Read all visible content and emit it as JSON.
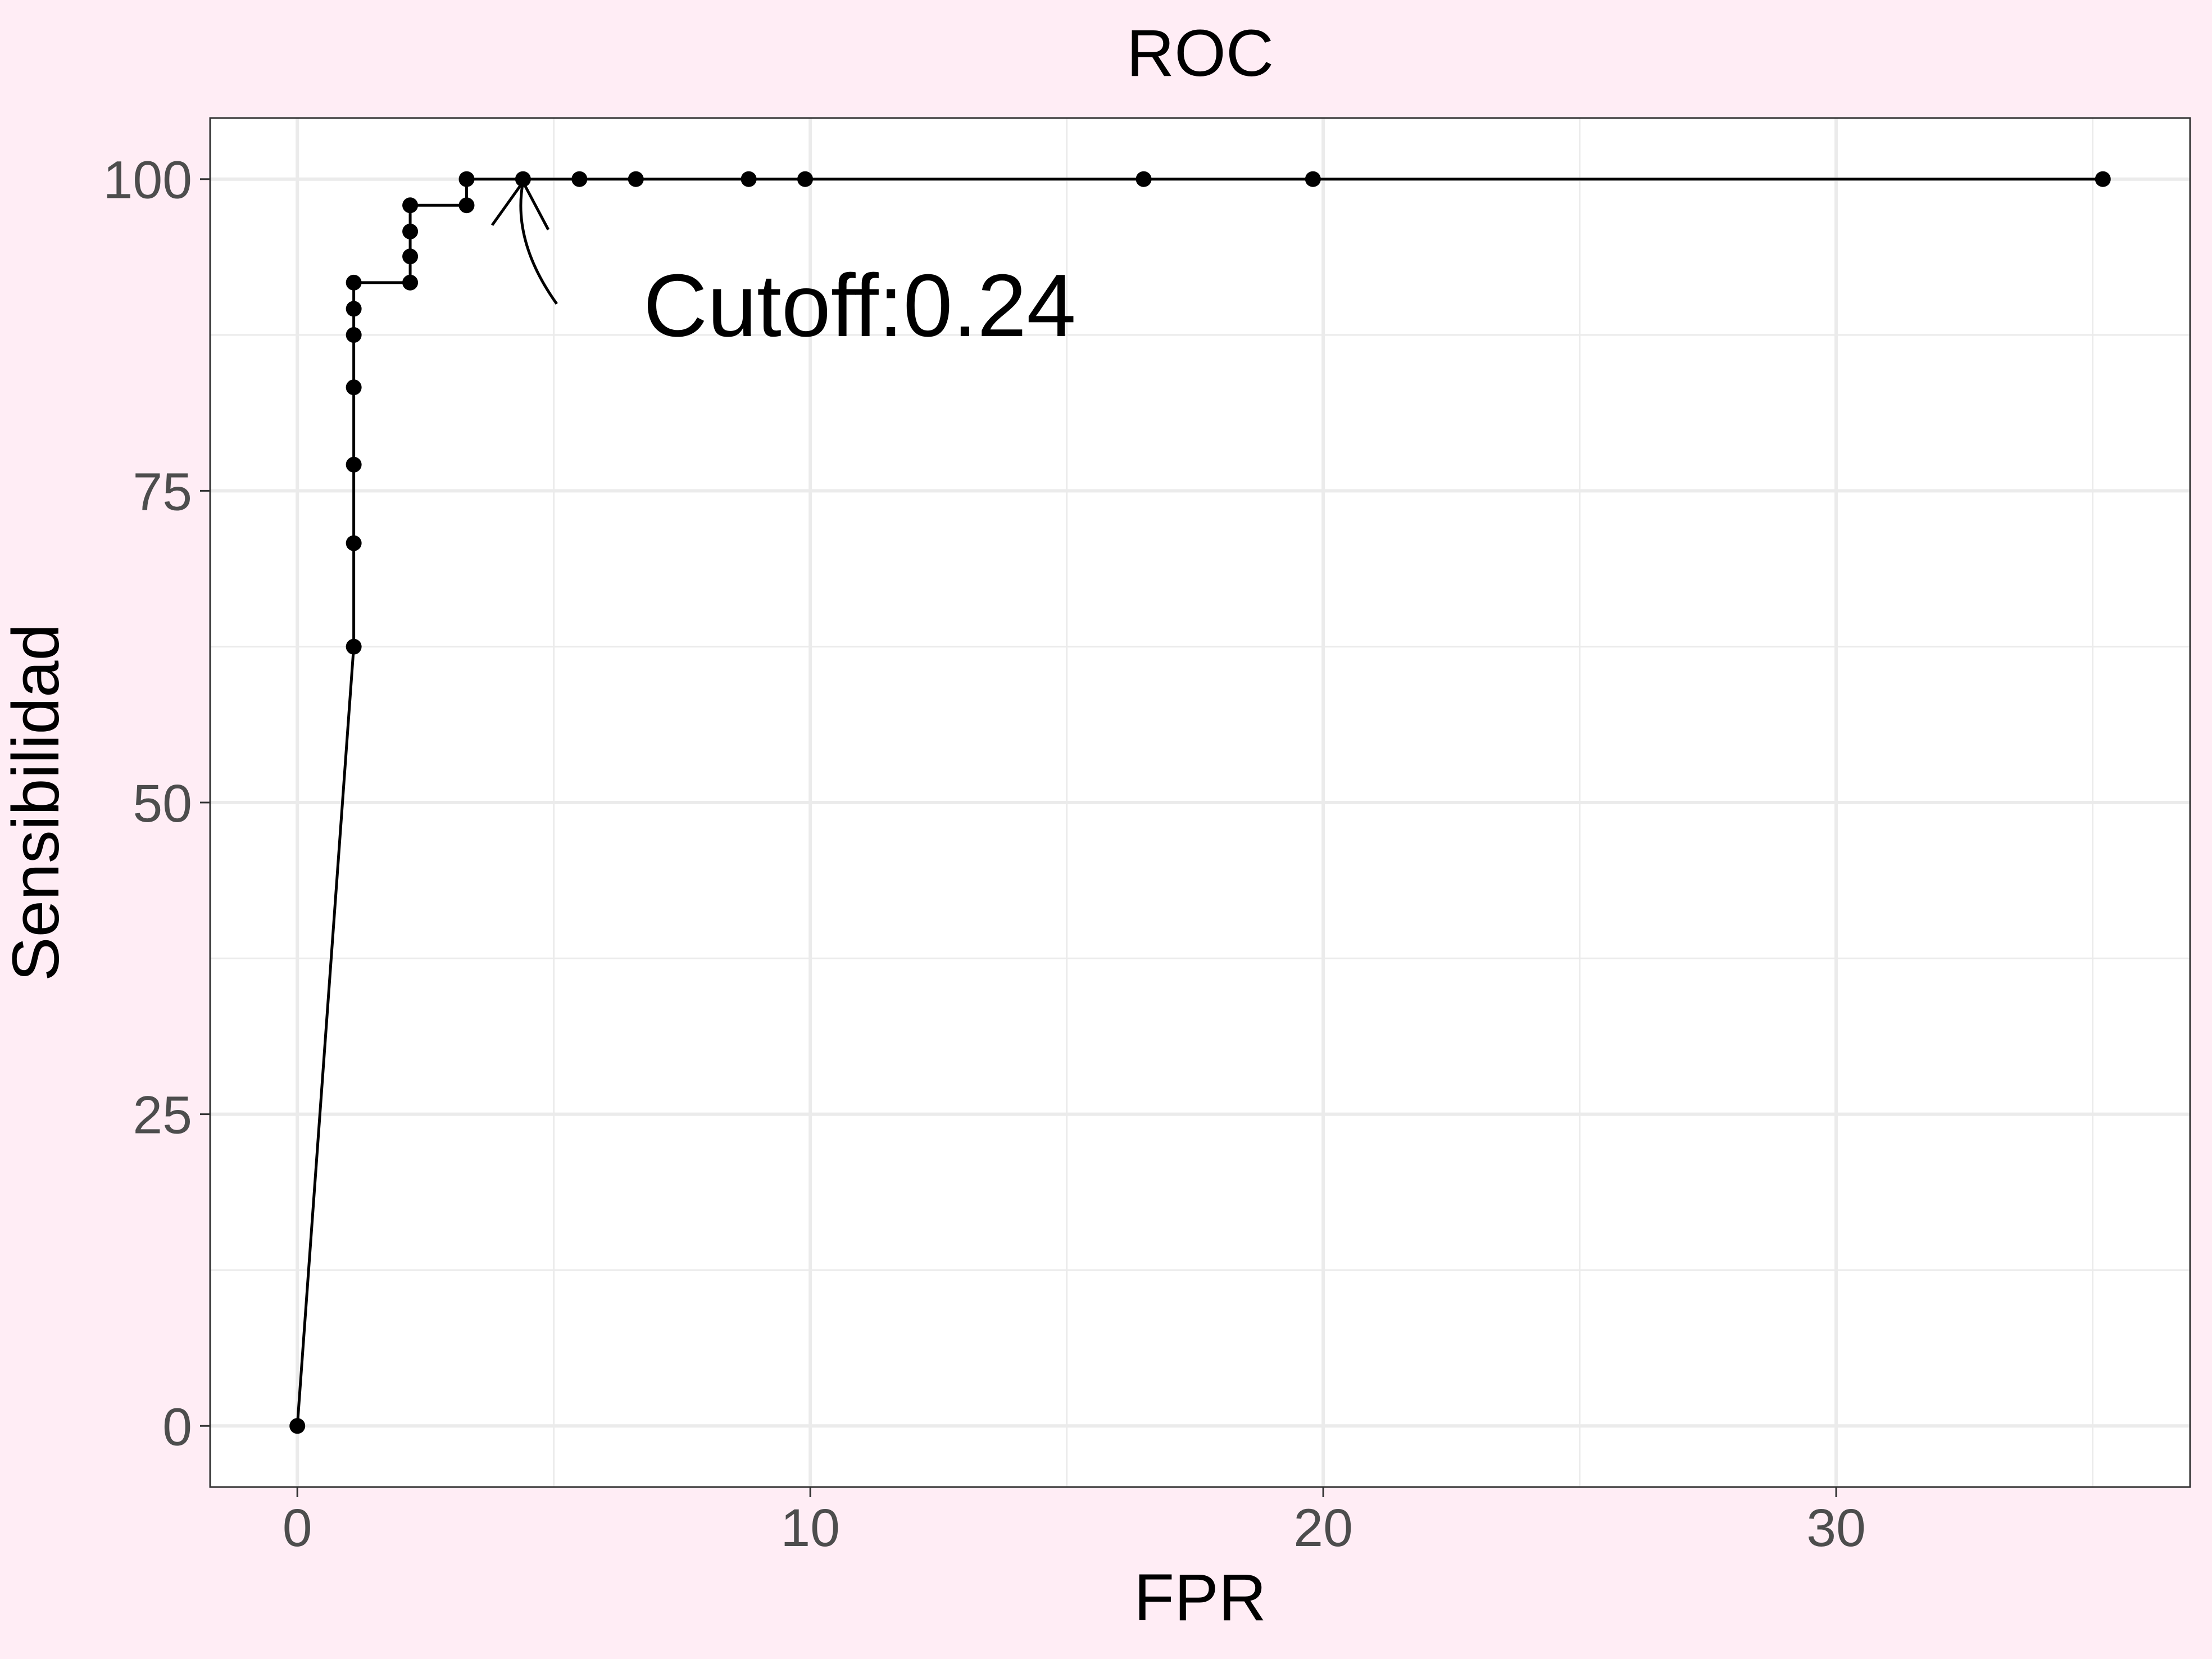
{
  "chart_data": {
    "type": "line",
    "title": "ROC",
    "xlabel": "FPR",
    "ylabel": "Sensibilidad",
    "xlim": [
      -1.7,
      36.9
    ],
    "ylim": [
      -4.9,
      104.9
    ],
    "x_ticks": [
      0,
      10,
      20,
      30
    ],
    "y_ticks": [
      0,
      25,
      50,
      75,
      100
    ],
    "x_minor": [
      5,
      15,
      25,
      35
    ],
    "y_minor": [
      12.5,
      37.5,
      62.5,
      87.5
    ],
    "grid": true,
    "series": [
      {
        "points": [
          {
            "x": 0,
            "y": 0
          },
          {
            "x": 1.1,
            "y": 62.5
          },
          {
            "x": 1.1,
            "y": 70.8
          },
          {
            "x": 1.1,
            "y": 77.1
          },
          {
            "x": 1.1,
            "y": 83.3
          },
          {
            "x": 1.1,
            "y": 87.5
          },
          {
            "x": 1.1,
            "y": 89.6
          },
          {
            "x": 1.1,
            "y": 91.7
          },
          {
            "x": 2.2,
            "y": 91.7
          },
          {
            "x": 2.2,
            "y": 93.8
          },
          {
            "x": 2.2,
            "y": 95.8
          },
          {
            "x": 2.2,
            "y": 97.9
          },
          {
            "x": 3.3,
            "y": 97.9
          },
          {
            "x": 3.3,
            "y": 100
          },
          {
            "x": 4.4,
            "y": 100
          },
          {
            "x": 5.5,
            "y": 100
          },
          {
            "x": 6.6,
            "y": 100
          },
          {
            "x": 8.8,
            "y": 100
          },
          {
            "x": 9.9,
            "y": 100
          },
          {
            "x": 16.5,
            "y": 100
          },
          {
            "x": 19.8,
            "y": 100
          },
          {
            "x": 35.2,
            "y": 100
          }
        ]
      }
    ],
    "annotation": {
      "text": "Cutoff:0.24",
      "point": {
        "x": 4.4,
        "y": 100
      }
    }
  },
  "colors": {
    "outer_background": "#ffedf5",
    "panel_background": "#ffffff",
    "grid": "#ebebeb",
    "series": "#000000"
  }
}
